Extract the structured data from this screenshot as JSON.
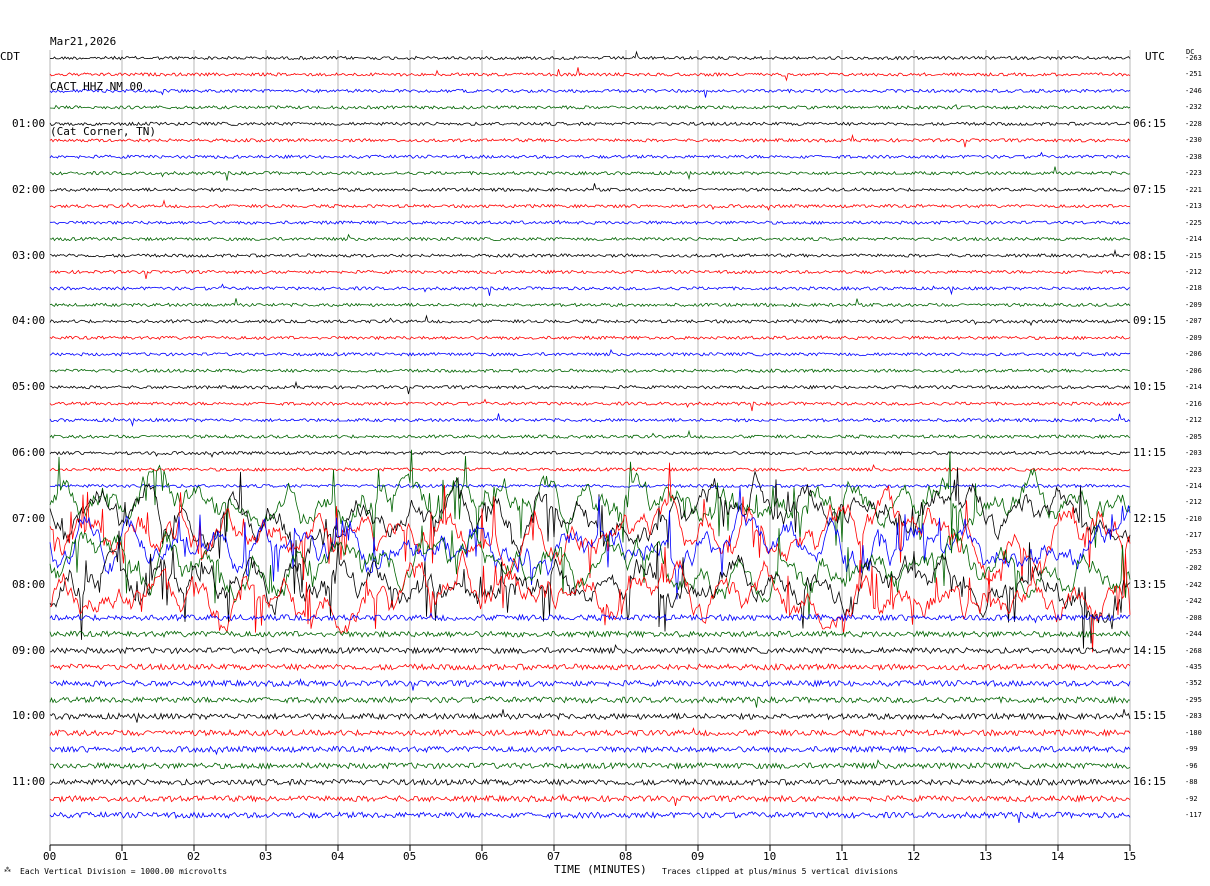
{
  "header": {
    "date": "Mar21,2026",
    "station": "CACT HHZ NM 00",
    "location": "(Cat Corner, TN)"
  },
  "left_tz": "CDT",
  "right_tz": "UTC",
  "dc_label": "DC",
  "footer": {
    "scale": "Each Vertical Division = 1000.00 microvolts",
    "xlabel": "TIME (MINUTES)",
    "clip": "Traces clipped at plus/minus 5 vertical divisions"
  },
  "colors": {
    "trace": [
      "#000000",
      "#ff0000",
      "#0000ff",
      "#006400"
    ],
    "grid": "#888888"
  },
  "chart_data": {
    "type": "line",
    "title": "CACT HHZ NM 00",
    "xlabel": "TIME (MINUTES)",
    "xlim": [
      0,
      15
    ],
    "x_ticks": [
      "00",
      "01",
      "02",
      "03",
      "04",
      "05",
      "06",
      "07",
      "08",
      "09",
      "10",
      "11",
      "12",
      "13",
      "14",
      "15"
    ],
    "left_hour_labels": [
      "01:00",
      "02:00",
      "03:00",
      "04:00",
      "05:00",
      "06:00",
      "07:00",
      "08:00",
      "09:00",
      "10:00",
      "11:00"
    ],
    "right_hour_labels": [
      "06:15",
      "07:15",
      "08:15",
      "09:15",
      "10:15",
      "11:15",
      "12:15",
      "13:15",
      "14:15",
      "15:15",
      "16:15"
    ],
    "dc_offsets": [
      -263,
      -251,
      -246,
      -232,
      -228,
      -230,
      -238,
      -223,
      -221,
      -213,
      -225,
      -214,
      -215,
      -212,
      -218,
      -209,
      -207,
      -209,
      -206,
      -206,
      -214,
      -216,
      -212,
      -205,
      -203,
      -223,
      -214,
      -212,
      -210,
      -217,
      -253,
      -202,
      -242,
      -242,
      -208,
      -244,
      -268,
      -435,
      -352,
      -295,
      -283,
      -180,
      -99,
      -96,
      -88,
      -92,
      -117
    ],
    "clip_divisions": 5,
    "division_microvolts": 1000.0
  }
}
